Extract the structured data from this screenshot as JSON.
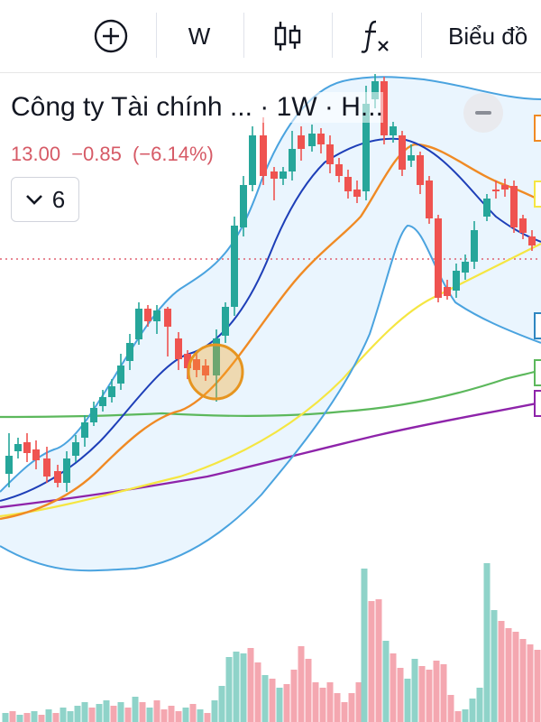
{
  "toolbar": {
    "add_icon": "plus-circle-icon",
    "interval_label": "W",
    "chart_type_icon": "candlestick-icon",
    "indicator_icon": "fx-icon",
    "chart_menu_label": "Biểu đồ"
  },
  "legend": {
    "title": "Công ty Tài chính ... · 1W · H...",
    "price": "13.00",
    "change": "−0.85",
    "change_pct": "(−6.14%)",
    "indicator_count": "6",
    "chevron_icon": "chevron-down-icon",
    "collapse_icon": "minus-icon"
  },
  "colors": {
    "up": "#26a69a",
    "down": "#ef5350",
    "legend_down": "#d65a66",
    "bb_band": "#2e86c1",
    "bb_basis": "#1e3fb8",
    "ma_orange": "#f08a24",
    "ma_yellow": "#f5e642",
    "ma_green": "#4caf50",
    "ma_purple": "#8e24aa",
    "highlight": "#f5a623"
  }
}
